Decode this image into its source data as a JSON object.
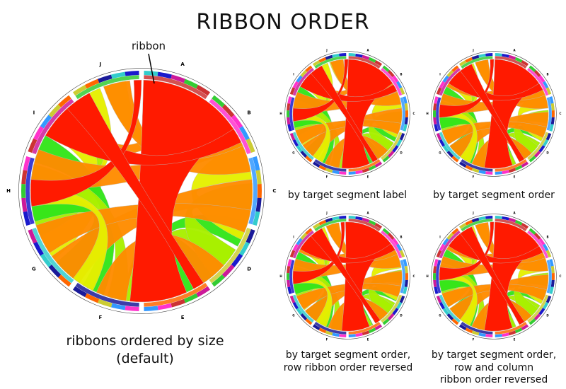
{
  "title": "RIBBON ORDER",
  "callout": "ribbon",
  "segment_labels": [
    "A",
    "B",
    "C",
    "D",
    "E",
    "F",
    "G",
    "H",
    "I",
    "J"
  ],
  "colors": {
    "red": "#ff1a00",
    "orange": "#ff8c00",
    "yellow": "#e6f000",
    "ygreen": "#a8f000",
    "green": "#33e61a",
    "ring": [
      "#33cccc",
      "#1a1acc",
      "#cc1a99",
      "#33cc33",
      "#cc3333",
      "#ff33cc",
      "#3399ff",
      "#cccc33",
      "#ff6600",
      "#1a1a99"
    ]
  },
  "captions": {
    "main": [
      "ribbons ordered by size",
      "(default)"
    ],
    "tr_left": [
      "by target segment label"
    ],
    "tr_right": [
      "by target segment order"
    ],
    "br_left": [
      "by target segment order,",
      "row ribbon order reversed"
    ],
    "br_right": [
      "by target segment order,",
      "row and column",
      "ribbon order reversed"
    ]
  }
}
